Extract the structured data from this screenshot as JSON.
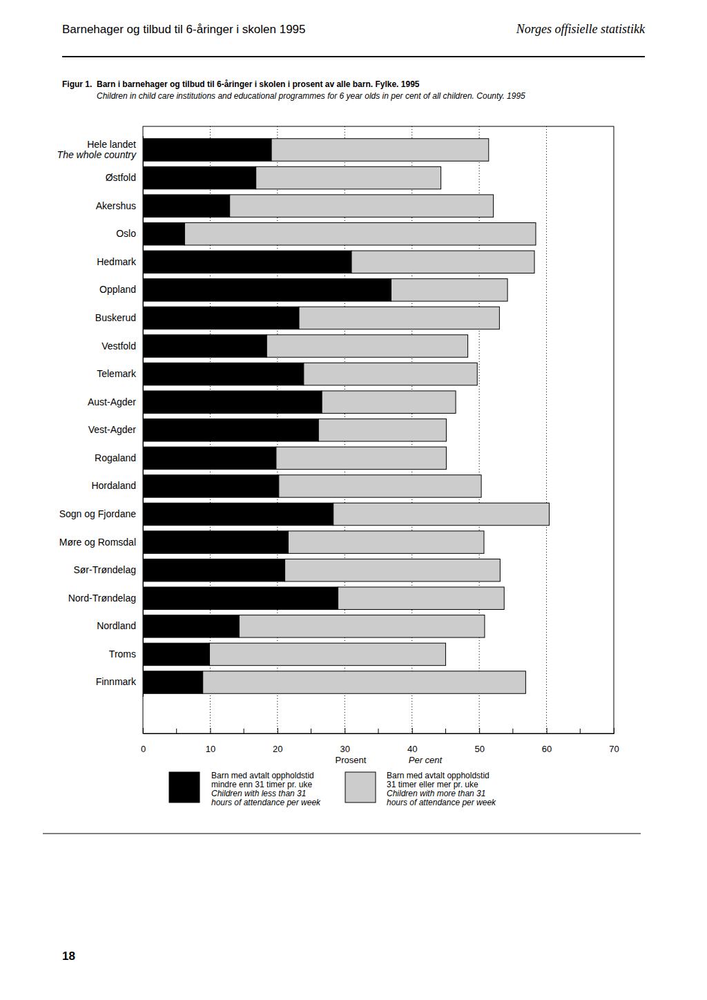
{
  "page": {
    "header_left": "Barnehager og tilbud til 6-åringer i skolen 1995",
    "header_right": "Norges offisielle statistikk",
    "figure_label": "Figur 1.",
    "page_number": "18"
  },
  "chart_data": {
    "type": "bar",
    "orientation": "horizontal",
    "stacked": true,
    "grid": true,
    "title": "Barn i barnehager og tilbud til 6-åringer i skolen i prosent av alle barn. Fylke. 1995",
    "subtitle": "Children in child care institutions and educational programmes for 6 year olds in per cent of all children. County. 1995",
    "xlabel": "Prosent",
    "xlabel_en": "Per cent",
    "categories": [
      "Hele landet\nThe whole country",
      "Østfold",
      "Akershus",
      "Oslo",
      "Hedmark",
      "Oppland",
      "Buskerud",
      "Vestfold",
      "Telemark",
      "Aust-Agder",
      "Vest-Agder",
      "Rogaland",
      "Hordaland",
      "Sogn og Fjordane",
      "Møre og Romsdal",
      "Sør-Trøndelag",
      "Nord-Trøndelag",
      "Nordland",
      "Troms",
      "Finnmark"
    ],
    "series": [
      {
        "name": "Barn med avtalt oppholdstid\nmindre enn 31 timer pr. uke\nChildren with less than 31\nhours of attendance per week",
        "color": "#000000",
        "values": [
          19.1,
          16.8,
          12.9,
          6.2,
          31.0,
          36.9,
          23.2,
          18.4,
          23.9,
          26.6,
          26.1,
          19.8,
          20.2,
          28.3,
          21.6,
          21.1,
          29.0,
          14.3,
          9.9,
          8.9
        ]
      },
      {
        "name": "Barn med avtalt oppholdstid\n31 timer eller mer pr. uke\nChildren with more than 31\nhours of attendance per week",
        "color": "#cccccc",
        "values": [
          32.3,
          27.5,
          39.2,
          52.2,
          27.2,
          17.3,
          29.8,
          29.9,
          25.8,
          19.9,
          19.0,
          25.3,
          30.1,
          32.1,
          29.1,
          32.0,
          24.7,
          36.5,
          35.1,
          48.0
        ]
      }
    ],
    "xlim": [
      0,
      70
    ],
    "xticks": [
      0,
      10,
      20,
      30,
      40,
      50,
      60,
      70
    ],
    "xticks_minor": [
      5,
      15,
      25,
      35,
      45,
      55,
      65
    ]
  }
}
